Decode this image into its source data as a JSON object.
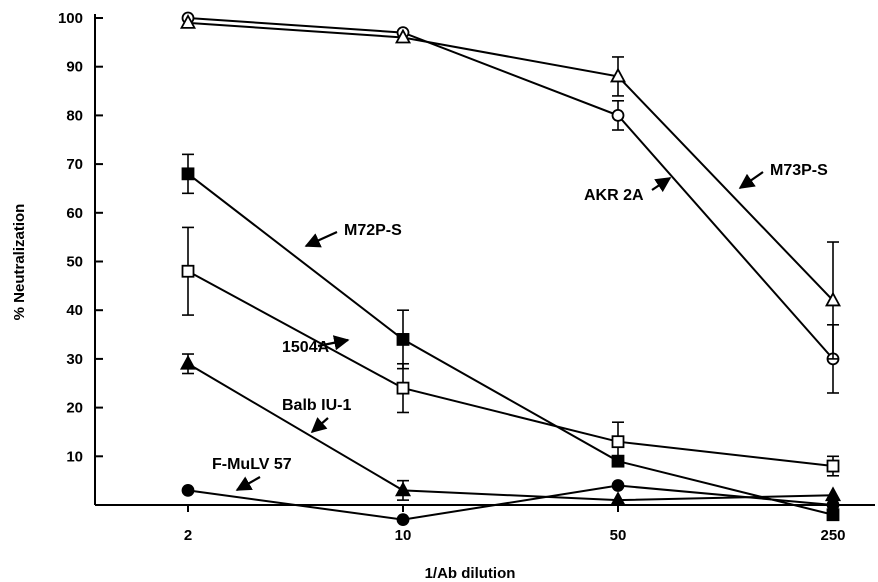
{
  "chart_data": {
    "type": "line",
    "xlabel": "1/Ab dilution",
    "ylabel": "% Neutralization",
    "x_ticks": [
      "2",
      "10",
      "50",
      "250"
    ],
    "y_ticks": [
      "10",
      "20",
      "30",
      "40",
      "50",
      "60",
      "70",
      "80",
      "90",
      "100"
    ],
    "ylim": [
      0,
      100
    ],
    "x": [
      2,
      10,
      50,
      250
    ],
    "x_scale": "log",
    "series": [
      {
        "name": "AKR 2A",
        "marker": "open-circle",
        "values": [
          100,
          97,
          80,
          30
        ],
        "error": [
          0,
          0,
          3,
          7
        ]
      },
      {
        "name": "M73P-S",
        "marker": "open-triangle",
        "values": [
          99,
          96,
          88,
          42
        ],
        "error": [
          0,
          0,
          4,
          12
        ]
      },
      {
        "name": "M72P-S",
        "marker": "filled-square",
        "values": [
          68,
          34,
          9,
          -2
        ],
        "error": [
          4,
          6,
          0,
          0
        ]
      },
      {
        "name": "1504A",
        "marker": "open-square",
        "values": [
          48,
          24,
          13,
          8
        ],
        "error": [
          9,
          5,
          4,
          2
        ]
      },
      {
        "name": "Balb IU-1",
        "marker": "filled-triangle",
        "values": [
          29,
          3,
          1,
          2
        ],
        "error": [
          2,
          2,
          0,
          0
        ]
      },
      {
        "name": "F-MuLV 57",
        "marker": "filled-circle",
        "values": [
          3,
          -3,
          4,
          0
        ],
        "error": [
          0,
          0,
          0,
          0
        ]
      }
    ]
  }
}
